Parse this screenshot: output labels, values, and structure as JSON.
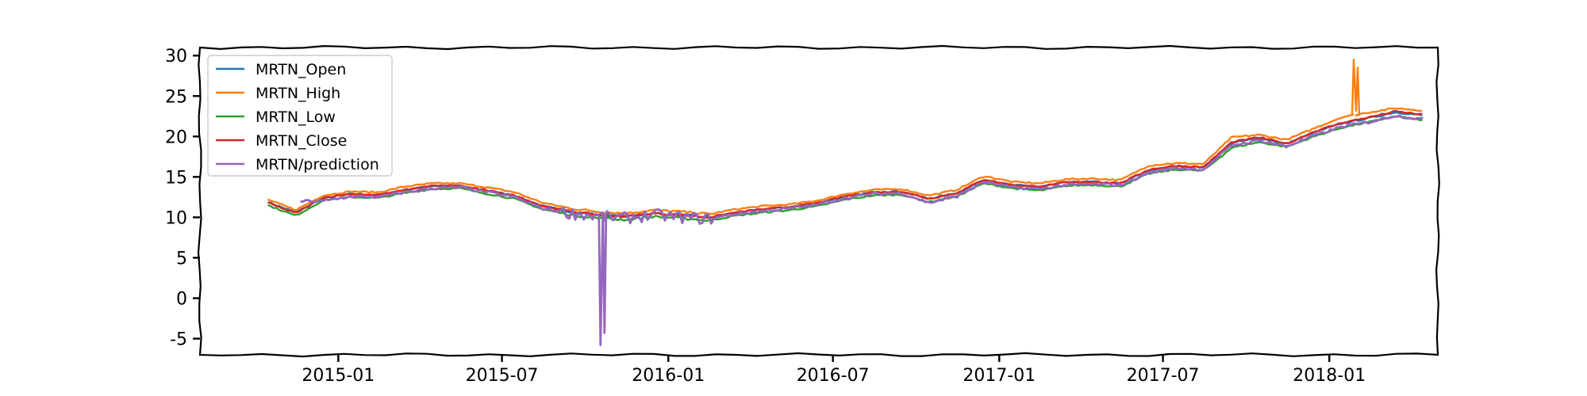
{
  "chart_data": {
    "type": "line",
    "title": "",
    "xlabel": "",
    "ylabel": "",
    "xlim": [
      "2014-08-01",
      "2018-05-01"
    ],
    "ylim": [
      -7,
      31
    ],
    "grid": false,
    "legend_position": "top-left",
    "x_ticks": [
      "2015-01-01",
      "2015-07-01",
      "2016-01-01",
      "2016-07-01",
      "2017-01-01",
      "2017-07-01",
      "2018-01-01"
    ],
    "x_tick_labels": [
      "2015-01",
      "2015-07",
      "2016-01",
      "2016-07",
      "2017-01",
      "2017-07",
      "2018-01"
    ],
    "y_ticks": [
      -5,
      0,
      5,
      10,
      15,
      20,
      25,
      30
    ],
    "y_tick_labels": [
      "-5",
      "0",
      "5",
      "10",
      "15",
      "20",
      "25",
      "30"
    ],
    "x": [
      "2014-10-15",
      "2014-11-15",
      "2014-12-15",
      "2015-01-15",
      "2015-02-15",
      "2015-03-15",
      "2015-04-15",
      "2015-05-15",
      "2015-06-15",
      "2015-07-15",
      "2015-08-15",
      "2015-09-15",
      "2015-10-15",
      "2015-11-15",
      "2015-12-15",
      "2016-01-15",
      "2016-02-15",
      "2016-03-15",
      "2016-04-15",
      "2016-05-15",
      "2016-06-15",
      "2016-07-15",
      "2016-08-15",
      "2016-09-15",
      "2016-10-15",
      "2016-11-15",
      "2016-12-15",
      "2017-01-15",
      "2017-02-15",
      "2017-03-15",
      "2017-04-15",
      "2017-05-15",
      "2017-06-15",
      "2017-07-15",
      "2017-08-15",
      "2017-09-15",
      "2017-10-15",
      "2017-11-15",
      "2017-12-15",
      "2018-01-15",
      "2018-02-15",
      "2018-03-15",
      "2018-04-15"
    ],
    "series": [
      {
        "name": "MRTN_Open",
        "color": "#1f77b4",
        "values": [
          11.9,
          10.6,
          12.4,
          12.9,
          12.8,
          13.4,
          13.9,
          13.9,
          13.3,
          12.7,
          11.4,
          10.7,
          10.3,
          10.1,
          10.5,
          10.3,
          10.0,
          10.6,
          11.0,
          11.3,
          11.8,
          12.6,
          13.1,
          13.2,
          12.3,
          13.0,
          14.6,
          14.0,
          13.8,
          14.3,
          14.4,
          14.2,
          15.8,
          16.3,
          16.2,
          19.2,
          19.8,
          19.1,
          20.5,
          21.6,
          22.3,
          23.0,
          22.6
        ]
      },
      {
        "name": "MRTN_High",
        "color": "#ff7f0e",
        "values": [
          12.2,
          10.9,
          12.7,
          13.2,
          13.1,
          13.8,
          14.2,
          14.2,
          13.7,
          13.1,
          11.8,
          11.1,
          10.7,
          10.5,
          10.9,
          10.7,
          10.4,
          11.0,
          11.4,
          11.6,
          12.1,
          12.9,
          13.4,
          13.5,
          12.7,
          13.4,
          15.1,
          14.4,
          14.2,
          14.7,
          14.8,
          14.6,
          16.4,
          16.7,
          16.6,
          19.9,
          20.2,
          19.6,
          21.0,
          22.4,
          23.0,
          23.5,
          23.2
        ]
      },
      {
        "name": "MRTN_Low",
        "color": "#2ca02c",
        "values": [
          11.5,
          10.2,
          12.1,
          12.5,
          12.4,
          13.0,
          13.5,
          13.6,
          12.9,
          12.3,
          11.0,
          10.3,
          9.9,
          9.7,
          10.1,
          9.9,
          9.6,
          10.2,
          10.6,
          10.9,
          11.4,
          12.2,
          12.7,
          12.8,
          11.9,
          12.6,
          14.2,
          13.6,
          13.3,
          13.9,
          14.0,
          13.8,
          15.4,
          15.9,
          15.8,
          18.6,
          19.3,
          18.7,
          20.0,
          21.1,
          21.8,
          22.5,
          22.0
        ]
      },
      {
        "name": "MRTN_Close",
        "color": "#d62728",
        "values": [
          11.8,
          10.5,
          12.4,
          12.9,
          12.7,
          13.4,
          13.9,
          13.9,
          13.3,
          12.7,
          11.4,
          10.7,
          10.3,
          10.1,
          10.5,
          10.3,
          10.0,
          10.6,
          11.0,
          11.3,
          11.8,
          12.6,
          13.1,
          13.2,
          12.3,
          13.0,
          14.7,
          14.0,
          13.8,
          14.3,
          14.4,
          14.2,
          15.9,
          16.4,
          16.2,
          19.3,
          19.9,
          19.1,
          20.6,
          21.7,
          22.4,
          23.1,
          22.7
        ]
      },
      {
        "name": "MRTN/prediction",
        "color": "#9467bd",
        "values": [
          null,
          null,
          12.0,
          12.6,
          12.5,
          13.1,
          13.6,
          13.7,
          13.1,
          12.5,
          11.1,
          10.5,
          10.1,
          9.9,
          10.3,
          10.0,
          9.8,
          10.4,
          10.8,
          11.1,
          11.6,
          12.4,
          12.9,
          13.0,
          11.8,
          12.6,
          14.4,
          13.7,
          13.5,
          14.0,
          14.1,
          14.0,
          15.5,
          16.1,
          15.9,
          18.9,
          19.5,
          18.8,
          20.1,
          21.2,
          21.8,
          22.6,
          22.1
        ]
      }
    ],
    "annotations": [
      {
        "series": "MRTN/prediction",
        "x": "2015-10-18",
        "y": -5.8,
        "note": "downward spike"
      },
      {
        "series": "MRTN_High",
        "x": "2018-01-28",
        "y": 29.5,
        "note": "upward spike"
      }
    ]
  }
}
